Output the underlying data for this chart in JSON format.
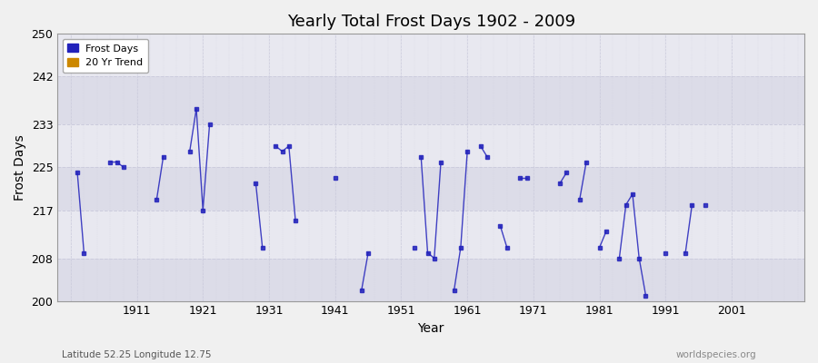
{
  "title": "Yearly Total Frost Days 1902 - 2009",
  "xlabel": "Year",
  "ylabel": "Frost Days",
  "lat_lon_label": "Latitude 52.25 Longitude 12.75",
  "watermark": "worldspecies.org",
  "ylim": [
    200,
    250
  ],
  "yticks": [
    200,
    208,
    217,
    225,
    233,
    242,
    250
  ],
  "xlim": [
    1899,
    2012
  ],
  "xticks": [
    1901,
    1911,
    1921,
    1931,
    1941,
    1951,
    1961,
    1971,
    1981,
    1991,
    2001
  ],
  "xticklabels": [
    "",
    "1911",
    "1921",
    "1931",
    "1941",
    "1951",
    "1961",
    "1971",
    "1981",
    "1991",
    "2001"
  ],
  "fig_bg_color": "#f0f0f0",
  "plot_bg_color": "#e8e8e8",
  "grid_color": "#ffffff",
  "band_color_light": "#dcdce8",
  "band_color_dark": "#e8e8f0",
  "line_color": "#2222bb",
  "line_alpha": 0.85,
  "legend_square_color": "#2222bb",
  "legend_trend_color": "#cc8800",
  "segments": [
    {
      "years": [
        1902,
        1903
      ],
      "values": [
        224,
        209
      ]
    },
    {
      "years": [
        1907,
        1908,
        1909
      ],
      "values": [
        226,
        226,
        225
      ]
    },
    {
      "years": [
        1914,
        1915
      ],
      "values": [
        219,
        227
      ]
    },
    {
      "years": [
        1919,
        1920,
        1921,
        1922
      ],
      "values": [
        228,
        236,
        217,
        233
      ]
    },
    {
      "years": [
        1929,
        1930
      ],
      "values": [
        222,
        210
      ]
    },
    {
      "years": [
        1932,
        1933,
        1934,
        1935
      ],
      "values": [
        229,
        228,
        229,
        215
      ]
    },
    {
      "years": [
        1941
      ],
      "values": [
        223
      ]
    },
    {
      "years": [
        1945,
        1946
      ],
      "values": [
        202,
        209
      ]
    },
    {
      "years": [
        1953
      ],
      "values": [
        210
      ]
    },
    {
      "years": [
        1954,
        1955,
        1956,
        1957
      ],
      "values": [
        227,
        209,
        208,
        226
      ]
    },
    {
      "years": [
        1959,
        1960,
        1961
      ],
      "values": [
        202,
        210,
        228
      ]
    },
    {
      "years": [
        1963,
        1964
      ],
      "values": [
        229,
        227
      ]
    },
    {
      "years": [
        1966,
        1967
      ],
      "values": [
        214,
        210
      ]
    },
    {
      "years": [
        1969,
        1970
      ],
      "values": [
        223,
        223
      ]
    },
    {
      "years": [
        1975,
        1976
      ],
      "values": [
        222,
        224
      ]
    },
    {
      "years": [
        1978,
        1979
      ],
      "values": [
        219,
        226
      ]
    },
    {
      "years": [
        1981,
        1982
      ],
      "values": [
        210,
        213
      ]
    },
    {
      "years": [
        1984,
        1985,
        1986,
        1987,
        1988
      ],
      "values": [
        208,
        218,
        220,
        208,
        201
      ]
    },
    {
      "years": [
        1991
      ],
      "values": [
        209
      ]
    },
    {
      "years": [
        1994,
        1995
      ],
      "values": [
        209,
        218
      ]
    },
    {
      "years": [
        1997
      ],
      "values": [
        218
      ]
    }
  ]
}
